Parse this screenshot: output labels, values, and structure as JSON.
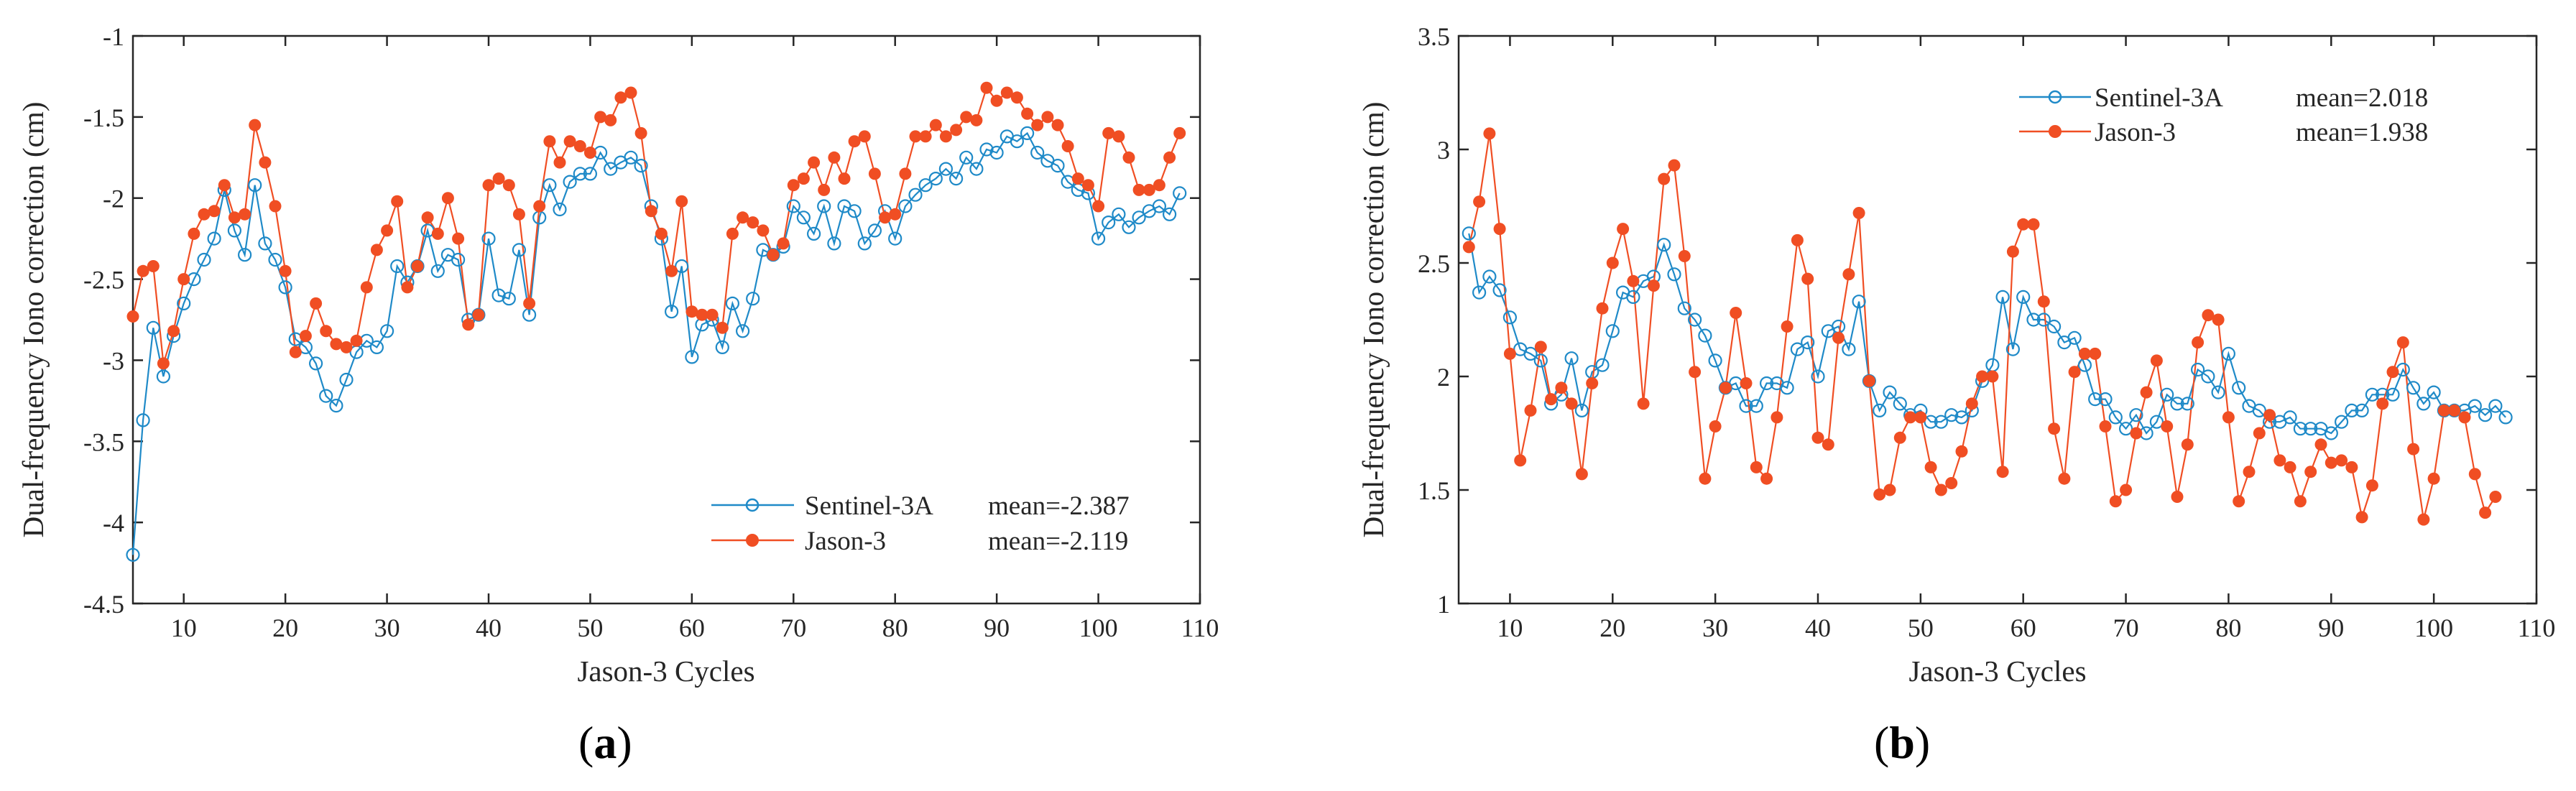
{
  "colors": {
    "sentinel": "#1f8ac8",
    "jason": "#f04e23",
    "axis": "#262626"
  },
  "chart_data": [
    {
      "panel": "(a)",
      "panel_letter": "a",
      "type": "line",
      "xlabel": "Jason-3 Cycles",
      "ylabel": "Dual-frequency Iono correction (cm)",
      "xlim": [
        5,
        110
      ],
      "ylim": [
        -4.5,
        -1
      ],
      "xticks": [
        10,
        20,
        30,
        40,
        50,
        60,
        70,
        80,
        90,
        100,
        110
      ],
      "yticks": [
        -4.5,
        -4,
        -3.5,
        -3,
        -2.5,
        -2,
        -1.5,
        -1
      ],
      "ytick_labels": [
        "-4.5",
        "-4",
        "-3.5",
        "-3",
        "-2.5",
        "-2",
        "-1.5",
        "-1"
      ],
      "legend_position": "bottom-right",
      "series": [
        {
          "name": "Sentinel-3A",
          "mean_label": "mean=-2.387",
          "marker": "open-circle",
          "color": "#1f8ac8",
          "x_start": 5,
          "values": [
            -4.2,
            -3.37,
            -2.8,
            -3.1,
            -2.85,
            -2.65,
            -2.5,
            -2.38,
            -2.25,
            -1.95,
            -2.2,
            -2.35,
            -1.92,
            -2.28,
            -2.38,
            -2.55,
            -2.87,
            -2.92,
            -3.02,
            -3.22,
            -3.28,
            -3.12,
            -2.95,
            -2.88,
            -2.92,
            -2.82,
            -2.42,
            -2.52,
            -2.42,
            -2.2,
            -2.45,
            -2.35,
            -2.38,
            -2.75,
            -2.72,
            -2.25,
            -2.6,
            -2.62,
            -2.32,
            -2.72,
            -2.12,
            -1.92,
            -2.07,
            -1.9,
            -1.85,
            -1.85,
            -1.72,
            -1.82,
            -1.78,
            -1.75,
            -1.8,
            -2.05,
            -2.25,
            -2.7,
            -2.42,
            -2.98,
            -2.78,
            -2.75,
            -2.92,
            -2.65,
            -2.82,
            -2.62,
            -2.32,
            -2.35,
            -2.3,
            -2.05,
            -2.12,
            -2.22,
            -2.05,
            -2.28,
            -2.05,
            -2.08,
            -2.28,
            -2.2,
            -2.08,
            -2.25,
            -2.05,
            -1.98,
            -1.92,
            -1.88,
            -1.82,
            -1.88,
            -1.75,
            -1.82,
            -1.7,
            -1.72,
            -1.62,
            -1.65,
            -1.6,
            -1.72,
            -1.77,
            -1.8,
            -1.9,
            -1.95,
            -1.97,
            -2.25,
            -2.15,
            -2.1,
            -2.18,
            -2.12,
            -2.08,
            -2.05,
            -2.1,
            -1.97
          ]
        },
        {
          "name": "Jason-3",
          "mean_label": "mean=-2.119",
          "marker": "filled-dot",
          "color": "#f04e23",
          "x_start": 5,
          "values": [
            -2.73,
            -2.45,
            -2.42,
            -3.02,
            -2.82,
            -2.5,
            -2.22,
            -2.1,
            -2.08,
            -1.92,
            -2.12,
            -2.1,
            -1.55,
            -1.78,
            -2.05,
            -2.45,
            -2.95,
            -2.85,
            -2.65,
            -2.82,
            -2.9,
            -2.92,
            -2.88,
            -2.55,
            -2.32,
            -2.2,
            -2.02,
            -2.55,
            -2.42,
            -2.12,
            -2.22,
            -2.0,
            -2.25,
            -2.78,
            -2.72,
            -1.92,
            -1.88,
            -1.92,
            -2.1,
            -2.65,
            -2.05,
            -1.65,
            -1.78,
            -1.65,
            -1.68,
            -1.72,
            -1.5,
            -1.52,
            -1.38,
            -1.35,
            -1.6,
            -2.08,
            -2.22,
            -2.45,
            -2.02,
            -2.7,
            -2.72,
            -2.72,
            -2.8,
            -2.22,
            -2.12,
            -2.15,
            -2.2,
            -2.35,
            -2.28,
            -1.92,
            -1.88,
            -1.78,
            -1.95,
            -1.75,
            -1.88,
            -1.65,
            -1.62,
            -1.85,
            -2.12,
            -2.1,
            -1.85,
            -1.62,
            -1.62,
            -1.55,
            -1.62,
            -1.58,
            -1.5,
            -1.52,
            -1.32,
            -1.4,
            -1.35,
            -1.38,
            -1.48,
            -1.55,
            -1.5,
            -1.55,
            -1.68,
            -1.88,
            -1.92,
            -2.05,
            -1.6,
            -1.62,
            -1.75,
            -1.95,
            -1.95,
            -1.92,
            -1.75,
            -1.6
          ]
        }
      ]
    },
    {
      "panel": "(b)",
      "panel_letter": "b",
      "type": "line",
      "xlabel": "Jason-3 Cycles",
      "ylabel": "Dual-frequency Iono correction (cm)",
      "xlim": [
        5,
        110
      ],
      "ylim": [
        1,
        3.5
      ],
      "xticks": [
        10,
        20,
        30,
        40,
        50,
        60,
        70,
        80,
        90,
        100,
        110
      ],
      "yticks": [
        1,
        1.5,
        2,
        2.5,
        3,
        3.5
      ],
      "ytick_labels": [
        "1",
        "1.5",
        "2",
        "2.5",
        "3",
        "3.5"
      ],
      "legend_position": "top-center",
      "series": [
        {
          "name": "Sentinel-3A",
          "mean_label": "mean=2.018",
          "marker": "open-circle",
          "color": "#1f8ac8",
          "x_start": 6,
          "values": [
            2.63,
            2.37,
            2.44,
            2.38,
            2.26,
            2.12,
            2.1,
            2.07,
            1.88,
            1.92,
            2.08,
            1.85,
            2.02,
            2.05,
            2.2,
            2.37,
            2.35,
            2.42,
            2.44,
            2.58,
            2.45,
            2.3,
            2.25,
            2.18,
            2.07,
            1.95,
            1.97,
            1.87,
            1.87,
            1.97,
            1.97,
            1.95,
            2.12,
            2.15,
            2.0,
            2.2,
            2.22,
            2.12,
            2.33,
            1.98,
            1.85,
            1.93,
            1.88,
            1.83,
            1.85,
            1.8,
            1.8,
            1.83,
            1.82,
            1.85,
            1.98,
            2.05,
            2.35,
            2.12,
            2.35,
            2.25,
            2.25,
            2.22,
            2.15,
            2.17,
            2.05,
            1.9,
            1.9,
            1.82,
            1.77,
            1.83,
            1.75,
            1.8,
            1.92,
            1.88,
            1.88,
            2.03,
            2.0,
            1.93,
            2.1,
            1.95,
            1.87,
            1.85,
            1.8,
            1.8,
            1.82,
            1.77,
            1.77,
            1.77,
            1.75,
            1.8,
            1.85,
            1.85,
            1.92,
            1.92,
            1.92,
            2.03,
            1.95,
            1.88,
            1.93,
            1.85,
            1.85,
            1.85,
            1.87,
            1.83,
            1.87,
            1.82
          ]
        },
        {
          "name": "Jason-3",
          "mean_label": "mean=1.938",
          "marker": "filled-dot",
          "color": "#f04e23",
          "x_start": 6,
          "values": [
            2.57,
            2.77,
            3.07,
            2.65,
            2.1,
            1.63,
            1.85,
            2.13,
            1.9,
            1.95,
            1.88,
            1.57,
            1.97,
            2.3,
            2.5,
            2.65,
            2.42,
            1.88,
            2.4,
            2.87,
            2.93,
            2.53,
            2.02,
            1.55,
            1.78,
            1.95,
            2.28,
            1.97,
            1.6,
            1.55,
            1.82,
            2.22,
            2.6,
            2.43,
            1.73,
            1.7,
            2.17,
            2.45,
            2.72,
            1.98,
            1.48,
            1.5,
            1.73,
            1.82,
            1.82,
            1.6,
            1.5,
            1.53,
            1.67,
            1.88,
            2.0,
            2.0,
            1.58,
            2.55,
            2.67,
            2.67,
            2.33,
            1.77,
            1.55,
            2.02,
            2.1,
            2.1,
            1.78,
            1.45,
            1.5,
            1.75,
            1.93,
            2.07,
            1.78,
            1.47,
            1.7,
            2.15,
            2.27,
            2.25,
            1.82,
            1.45,
            1.58,
            1.75,
            1.83,
            1.63,
            1.6,
            1.45,
            1.58,
            1.7,
            1.62,
            1.63,
            1.6,
            1.38,
            1.52,
            1.88,
            2.02,
            2.15,
            1.68,
            1.37,
            1.55,
            1.85,
            1.85,
            1.82,
            1.57,
            1.4,
            1.47
          ]
        }
      ]
    }
  ]
}
